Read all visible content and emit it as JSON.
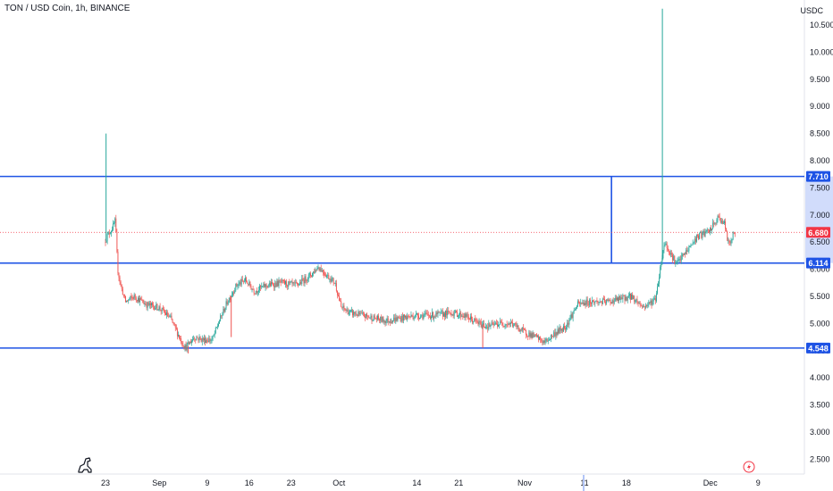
{
  "header": {
    "symbol_title": "TON / USD Coin, 1h, BINANCE",
    "currency": "USDC"
  },
  "colors": {
    "up": "#26a69a",
    "down": "#ef5350",
    "level_line": "#1e53e5",
    "last_price": "#f23645",
    "grid": "#f0f3fa",
    "axis_text": "#131722"
  },
  "icons": {
    "logo": "dinosaur-icon",
    "lightning": "lightning-icon"
  },
  "chart_data": {
    "type": "candlestick",
    "title": "TON / USD Coin, 1h, BINANCE",
    "xlabel": "",
    "ylabel": "USDC",
    "ylim": [
      2.25,
      10.75
    ],
    "y_ticks": [
      "2.500",
      "3.000",
      "3.500",
      "4.000",
      "4.500",
      "5.000",
      "5.500",
      "6.000",
      "6.500",
      "7.000",
      "7.500",
      "8.000",
      "8.500",
      "9.000",
      "9.500",
      "10.000",
      "10.500"
    ],
    "x_ticks": [
      {
        "label": "23",
        "day": 0
      },
      {
        "label": "Sep",
        "day": 9
      },
      {
        "label": "9",
        "day": 17
      },
      {
        "label": "16",
        "day": 24
      },
      {
        "label": "23",
        "day": 31
      },
      {
        "label": "Oct",
        "day": 39
      },
      {
        "label": "14",
        "day": 52
      },
      {
        "label": "21",
        "day": 59
      },
      {
        "label": "Nov",
        "day": 70
      },
      {
        "label": "11",
        "day": 80
      },
      {
        "label": "18",
        "day": 87
      },
      {
        "label": "Dec",
        "day": 101
      },
      {
        "label": "9",
        "day": 109
      }
    ],
    "price_path": [
      [
        0,
        6.5
      ],
      [
        0.4,
        6.6
      ],
      [
        1.5,
        6.8
      ],
      [
        1.8,
        6.9
      ],
      [
        2.2,
        6.0
      ],
      [
        2.7,
        5.7
      ],
      [
        3.5,
        5.4
      ],
      [
        5.0,
        5.5
      ],
      [
        7.0,
        5.35
      ],
      [
        9.0,
        5.3
      ],
      [
        11.0,
        5.1
      ],
      [
        12.5,
        4.75
      ],
      [
        13.5,
        4.55
      ],
      [
        15.0,
        4.75
      ],
      [
        16.5,
        4.7
      ],
      [
        18.0,
        4.7
      ],
      [
        19.0,
        5.0
      ],
      [
        20.5,
        5.4
      ],
      [
        22.0,
        5.7
      ],
      [
        23.5,
        5.8
      ],
      [
        25.0,
        5.6
      ],
      [
        27.0,
        5.7
      ],
      [
        29.5,
        5.75
      ],
      [
        32.0,
        5.7
      ],
      [
        34.5,
        5.9
      ],
      [
        35.7,
        6.05
      ],
      [
        37.0,
        5.9
      ],
      [
        38.5,
        5.75
      ],
      [
        39.5,
        5.3
      ],
      [
        41.0,
        5.2
      ],
      [
        43.0,
        5.15
      ],
      [
        45.0,
        5.1
      ],
      [
        47.0,
        5.05
      ],
      [
        49.5,
        5.1
      ],
      [
        52.0,
        5.15
      ],
      [
        55.0,
        5.15
      ],
      [
        58.0,
        5.2
      ],
      [
        60.0,
        5.15
      ],
      [
        62.5,
        5.0
      ],
      [
        64.0,
        4.95
      ],
      [
        66.0,
        5.0
      ],
      [
        68.0,
        5.0
      ],
      [
        70.0,
        4.85
      ],
      [
        72.0,
        4.75
      ],
      [
        73.5,
        4.65
      ],
      [
        75.0,
        4.8
      ],
      [
        77.0,
        4.95
      ],
      [
        79.0,
        5.35
      ],
      [
        81.0,
        5.4
      ],
      [
        84.0,
        5.4
      ],
      [
        86.0,
        5.45
      ],
      [
        88.0,
        5.5
      ],
      [
        90.0,
        5.3
      ],
      [
        92.0,
        5.45
      ],
      [
        93.5,
        6.5
      ],
      [
        94.5,
        6.3
      ],
      [
        95.5,
        6.1
      ],
      [
        97.0,
        6.3
      ],
      [
        99.0,
        6.6
      ],
      [
        101.0,
        6.7
      ],
      [
        102.5,
        6.95
      ],
      [
        103.5,
        6.85
      ],
      [
        104.2,
        6.45
      ],
      [
        105.2,
        6.68
      ]
    ],
    "spikes": [
      {
        "day": 0.1,
        "high": 8.5
      },
      {
        "day": 21.0,
        "low": 4.75
      },
      {
        "day": 93.0,
        "high": 10.8
      },
      {
        "day": 63.0,
        "low": 4.55
      },
      {
        "day": 13.8,
        "low": 4.45
      }
    ],
    "horizontal_levels": [
      {
        "value": 7.71,
        "label": "7.710"
      },
      {
        "value": 6.114,
        "label": "6.114"
      },
      {
        "value": 4.548,
        "label": "4.548"
      }
    ],
    "vertical_segment": {
      "day": 84.5,
      "from": 6.114,
      "to": 7.71
    },
    "last_price": {
      "value": 6.68,
      "label": "6.680"
    }
  }
}
